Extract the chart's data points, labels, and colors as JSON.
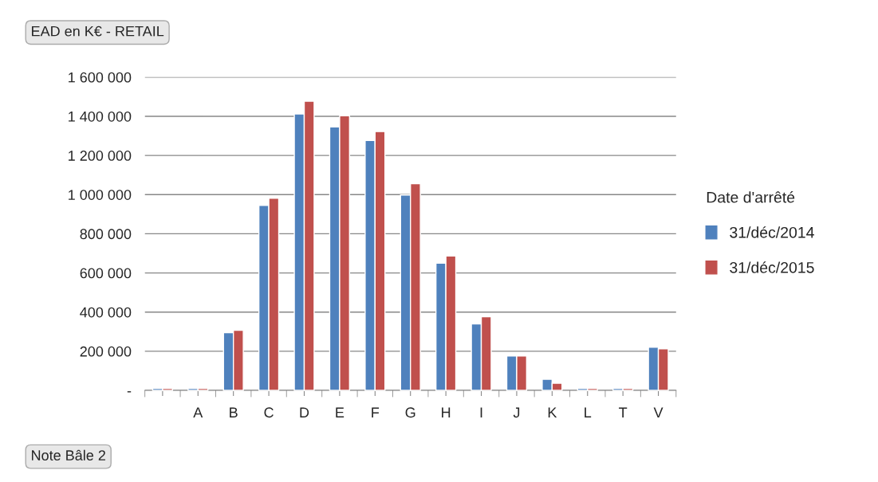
{
  "chart_data": {
    "type": "bar",
    "title": "EAD en K€ - RETAIL",
    "xlabel": "Note Bâle 2",
    "legend_title": "Date d'arrêté",
    "categories": [
      null,
      "A",
      "B",
      "C",
      "D",
      "E",
      "F",
      "G",
      "H",
      "I",
      "J",
      "K",
      "L",
      "T",
      "V"
    ],
    "series": [
      {
        "name": "31/déc/2014",
        "color": "#4f81bd",
        "values": [
          10000,
          10000,
          295000,
          945000,
          1412000,
          1346000,
          1277000,
          998000,
          650000,
          340000,
          176000,
          57000,
          10000,
          10000,
          221000
        ]
      },
      {
        "name": "31/déc/2015",
        "color": "#c0504d",
        "values": [
          10000,
          10000,
          307000,
          982000,
          1477000,
          1403000,
          1322000,
          1056000,
          687000,
          376000,
          176000,
          37000,
          10000,
          10000,
          213000
        ]
      }
    ],
    "ylim": [
      0,
      1600000
    ],
    "yticks": [
      {
        "value": 0,
        "label": "-"
      },
      {
        "value": 200000,
        "label": "200 000"
      },
      {
        "value": 400000,
        "label": "400 000"
      },
      {
        "value": 600000,
        "label": "600 000"
      },
      {
        "value": 800000,
        "label": "800 000"
      },
      {
        "value": 1000000,
        "label": "1 000 000"
      },
      {
        "value": 1200000,
        "label": "1 200 000"
      },
      {
        "value": 1400000,
        "label": "1 400 000"
      },
      {
        "value": 1600000,
        "label": "1 600 000"
      }
    ],
    "grid": "y",
    "legend": "right"
  }
}
